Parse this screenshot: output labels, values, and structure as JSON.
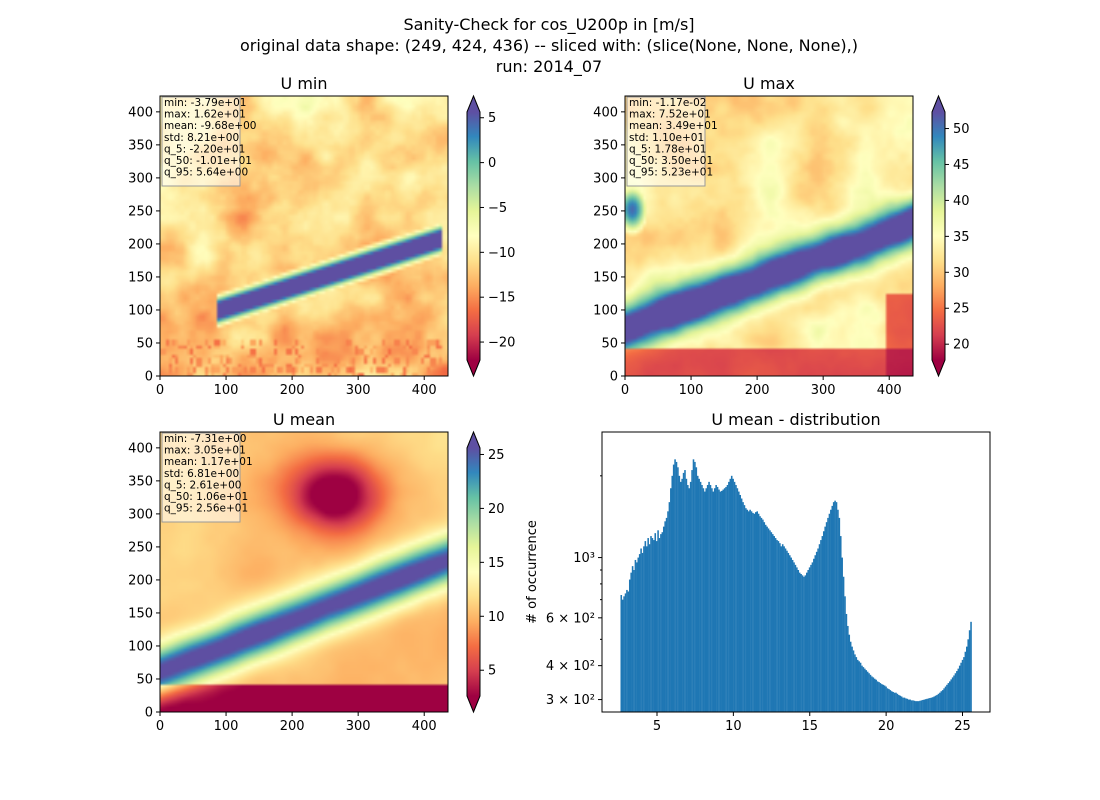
{
  "figure": {
    "title_lines": [
      "Sanity-Check for cos_U200p in [m/s]",
      "original data shape: (249, 424, 436) -- sliced with: (slice(None, None, None),)",
      "run: 2014_07"
    ]
  },
  "colormap": {
    "name": "Spectral",
    "stops": [
      "#9e0142",
      "#d53e4f",
      "#f46d43",
      "#fdae61",
      "#fee08b",
      "#ffffbf",
      "#e6f598",
      "#abdda4",
      "#66c2a5",
      "#3288bd",
      "#5e4fa2"
    ]
  },
  "chart_data": [
    {
      "type": "heatmap",
      "title": "U min",
      "xlim": [
        0,
        436
      ],
      "ylim": [
        0,
        424
      ],
      "xticks": [
        "0",
        "100",
        "200",
        "300",
        "400"
      ],
      "yticks": [
        "0",
        "50",
        "100",
        "150",
        "200",
        "250",
        "300",
        "350",
        "400"
      ],
      "color_range": [
        -22.0,
        5.64
      ],
      "colorbar_ticks": [
        "5",
        "0",
        "−5",
        "−10",
        "−15",
        "−20"
      ],
      "stats": [
        "min: -3.79e+01",
        "max: 1.62e+01",
        "mean: -9.68e+00",
        "std: 8.21e+00",
        "q_5: -2.20e+01",
        "q_50: -1.01e+01",
        "q_95: 5.64e+00"
      ]
    },
    {
      "type": "heatmap",
      "title": "U max",
      "xlim": [
        0,
        436
      ],
      "ylim": [
        0,
        424
      ],
      "xticks": [
        "0",
        "100",
        "200",
        "300",
        "400"
      ],
      "yticks": [
        "0",
        "50",
        "100",
        "150",
        "200",
        "250",
        "300",
        "350",
        "400"
      ],
      "color_range": [
        17.8,
        52.3
      ],
      "colorbar_ticks": [
        "50",
        "45",
        "40",
        "35",
        "30",
        "25",
        "20"
      ],
      "stats": [
        "min: -1.17e-02",
        "max: 7.52e+01",
        "mean: 3.49e+01",
        "std: 1.10e+01",
        "q_5: 1.78e+01",
        "q_50: 3.50e+01",
        "q_95: 5.23e+01"
      ]
    },
    {
      "type": "heatmap",
      "title": "U mean",
      "xlim": [
        0,
        436
      ],
      "ylim": [
        0,
        424
      ],
      "xticks": [
        "0",
        "100",
        "200",
        "300",
        "400"
      ],
      "yticks": [
        "0",
        "50",
        "100",
        "150",
        "200",
        "250",
        "300",
        "350",
        "400"
      ],
      "color_range": [
        2.61,
        25.6
      ],
      "colorbar_ticks": [
        "25",
        "20",
        "15",
        "10",
        "5"
      ],
      "stats": [
        "min: -7.31e+00",
        "max: 3.05e+01",
        "mean: 1.17e+01",
        "std: 6.81e+00",
        "q_5: 2.61e+00",
        "q_50: 1.06e+01",
        "q_95: 2.56e+01"
      ]
    },
    {
      "type": "bar",
      "title": "U mean - distribution",
      "ylabel": "# of occurrence",
      "xlim": [
        1.4,
        26.8
      ],
      "ylim": [
        270,
        2900
      ],
      "yscale": "log",
      "xticks": [
        "5",
        "10",
        "15",
        "20",
        "25"
      ],
      "yticks": [
        "3 × 10²",
        "4 × 10²",
        "6 × 10²",
        "10³"
      ],
      "color": "#1f77b4",
      "bin_range": [
        2.61,
        25.6
      ],
      "counts": [
        728,
        700,
        720,
        738,
        760,
        750,
        830,
        880,
        930,
        900,
        980,
        960,
        1000,
        1030,
        1080,
        1040,
        1100,
        1150,
        1100,
        1180,
        1120,
        1200,
        1180,
        1160,
        1230,
        1150,
        1260,
        1180,
        1220,
        1240,
        1300,
        1360,
        1400,
        1480,
        1600,
        1800,
        2000,
        2200,
        2300,
        2250,
        2150,
        2000,
        1900,
        1950,
        2050,
        2100,
        1950,
        1850,
        1800,
        1900,
        2100,
        2300,
        2250,
        2150,
        2000,
        1950,
        1900,
        1850,
        1800,
        1750,
        1800,
        1850,
        1900,
        1850,
        1800,
        1750,
        1800,
        1850,
        1820,
        1780,
        1750,
        1760,
        1780,
        1800,
        1820,
        1850,
        1900,
        1950,
        2000,
        1950,
        1900,
        1850,
        1800,
        1750,
        1700,
        1650,
        1600,
        1560,
        1520,
        1500,
        1480,
        1500,
        1480,
        1460,
        1450,
        1470,
        1480,
        1450,
        1420,
        1400,
        1380,
        1350,
        1320,
        1300,
        1280,
        1260,
        1240,
        1220,
        1200,
        1180,
        1160,
        1150,
        1130,
        1100,
        1120,
        1100,
        1080,
        1060,
        1040,
        1020,
        1000,
        980,
        960,
        940,
        920,
        900,
        880,
        870,
        860,
        850,
        860,
        880,
        900,
        920,
        940,
        960,
        990,
        1020,
        1050,
        1080,
        1120,
        1160,
        1200,
        1250,
        1300,
        1350,
        1400,
        1450,
        1500,
        1550,
        1600,
        1620,
        1600,
        1500,
        1400,
        1200,
        1000,
        850,
        720,
        620,
        560,
        520,
        490,
        470,
        455,
        440,
        430,
        420,
        415,
        410,
        400,
        395,
        390,
        385,
        380,
        375,
        370,
        365,
        362,
        358,
        355,
        350,
        348,
        345,
        342,
        340,
        338,
        335,
        330,
        328,
        325,
        322,
        320,
        318,
        318,
        315,
        312,
        310,
        308,
        305,
        305,
        303,
        302,
        300,
        300,
        298,
        298,
        297,
        296,
        296,
        296,
        297,
        298,
        299,
        300,
        301,
        302,
        303,
        304,
        305,
        306,
        308,
        310,
        312,
        315,
        318,
        322,
        325,
        330,
        335,
        340,
        345,
        350,
        356,
        362,
        368,
        375,
        382,
        390,
        400,
        410,
        420,
        430,
        450,
        470,
        500,
        540,
        580
      ]
    }
  ]
}
